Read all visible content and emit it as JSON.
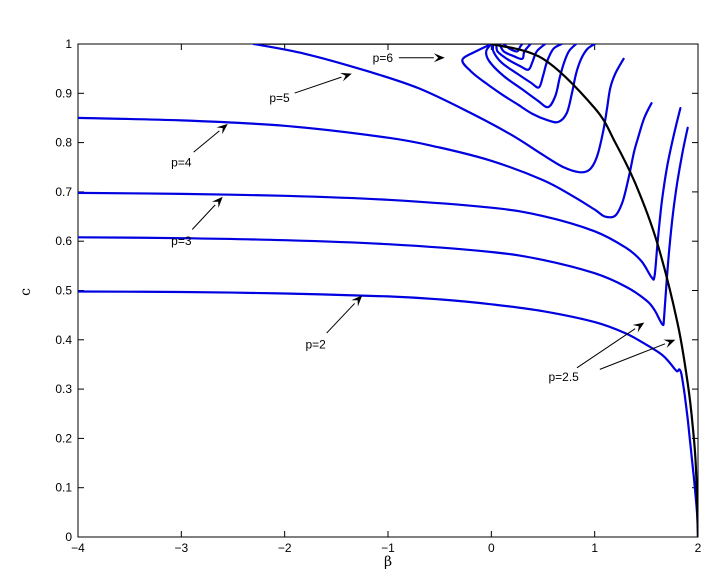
{
  "chart_data": {
    "type": "line",
    "xlabel": "β",
    "ylabel": "c",
    "xlim": [
      -4,
      2
    ],
    "ylim": [
      0,
      1
    ],
    "xticks": [
      -4,
      -3,
      -2,
      -1,
      0,
      1,
      2
    ],
    "yticks": [
      0,
      0.1,
      0.2,
      0.3,
      0.4,
      0.5,
      0.6,
      0.7,
      0.8,
      0.9,
      1
    ],
    "grid": false,
    "line_color": "#0000e0",
    "envelope_color": "#000000",
    "series": [
      {
        "name": "p=2",
        "points": [
          [
            -4,
            0.498
          ],
          [
            -3,
            0.497
          ],
          [
            -2,
            0.494
          ],
          [
            -1,
            0.488
          ],
          [
            -0.5,
            0.482
          ],
          [
            0,
            0.472
          ],
          [
            0.5,
            0.458
          ],
          [
            1,
            0.436
          ],
          [
            1.3,
            0.413
          ],
          [
            1.5,
            0.39
          ],
          [
            1.65,
            0.37
          ],
          [
            1.72,
            0.355
          ],
          [
            1.77,
            0.342
          ],
          [
            1.8,
            0.336
          ],
          [
            1.82,
            0.34
          ],
          [
            1.84,
            0.33
          ],
          [
            1.87,
            0.29
          ],
          [
            1.9,
            0.24
          ],
          [
            1.93,
            0.18
          ],
          [
            1.96,
            0.12
          ],
          [
            1.99,
            0.05
          ],
          [
            2.0,
            0.0
          ]
        ]
      },
      {
        "name": "",
        "points": [
          [
            -4,
            0.608
          ],
          [
            -3,
            0.606
          ],
          [
            -2,
            0.602
          ],
          [
            -1,
            0.594
          ],
          [
            0,
            0.578
          ],
          [
            0.5,
            0.562
          ],
          [
            1,
            0.535
          ],
          [
            1.3,
            0.508
          ],
          [
            1.5,
            0.48
          ],
          [
            1.58,
            0.46
          ],
          [
            1.63,
            0.44
          ],
          [
            1.66,
            0.43
          ],
          [
            1.67,
            0.44
          ],
          [
            1.69,
            0.5
          ],
          [
            1.72,
            0.58
          ],
          [
            1.76,
            0.66
          ],
          [
            1.8,
            0.72
          ],
          [
            1.85,
            0.78
          ],
          [
            1.9,
            0.83
          ]
        ]
      },
      {
        "name": "p=3",
        "points": [
          [
            -4,
            0.698
          ],
          [
            -3,
            0.696
          ],
          [
            -2,
            0.692
          ],
          [
            -1,
            0.684
          ],
          [
            0,
            0.668
          ],
          [
            0.5,
            0.651
          ],
          [
            1,
            0.62
          ],
          [
            1.3,
            0.587
          ],
          [
            1.45,
            0.56
          ],
          [
            1.55,
            0.527
          ],
          [
            1.58,
            0.53
          ],
          [
            1.61,
            0.6
          ],
          [
            1.65,
            0.68
          ],
          [
            1.7,
            0.75
          ],
          [
            1.76,
            0.81
          ],
          [
            1.83,
            0.87
          ]
        ]
      },
      {
        "name": "p=4",
        "points": [
          [
            -4,
            0.85
          ],
          [
            -3,
            0.845
          ],
          [
            -2,
            0.834
          ],
          [
            -1,
            0.81
          ],
          [
            -0.5,
            0.79
          ],
          [
            0,
            0.763
          ],
          [
            0.5,
            0.724
          ],
          [
            0.8,
            0.69
          ],
          [
            1,
            0.664
          ],
          [
            1.1,
            0.65
          ],
          [
            1.2,
            0.652
          ],
          [
            1.27,
            0.68
          ],
          [
            1.33,
            0.73
          ],
          [
            1.38,
            0.78
          ],
          [
            1.42,
            0.81
          ],
          [
            1.48,
            0.85
          ],
          [
            1.55,
            0.88
          ]
        ]
      },
      {
        "name": "p=5",
        "points": [
          [
            -2.3,
            1.0
          ],
          [
            -1.8,
            0.98
          ],
          [
            -1.2,
            0.945
          ],
          [
            -0.7,
            0.91
          ],
          [
            -0.2,
            0.86
          ],
          [
            0.2,
            0.815
          ],
          [
            0.5,
            0.775
          ],
          [
            0.7,
            0.75
          ],
          [
            0.85,
            0.74
          ],
          [
            0.95,
            0.745
          ],
          [
            1.02,
            0.77
          ],
          [
            1.08,
            0.82
          ],
          [
            1.12,
            0.87
          ],
          [
            1.15,
            0.91
          ],
          [
            1.2,
            0.94
          ],
          [
            1.28,
            0.97
          ]
        ]
      },
      {
        "name": "p=6",
        "points": [
          [
            0,
            1.0
          ],
          [
            -0.15,
            0.985
          ],
          [
            -0.28,
            0.968
          ],
          [
            -0.2,
            0.945
          ],
          [
            -0.05,
            0.92
          ],
          [
            0.1,
            0.898
          ],
          [
            0.25,
            0.878
          ],
          [
            0.4,
            0.858
          ],
          [
            0.55,
            0.845
          ],
          [
            0.65,
            0.842
          ],
          [
            0.73,
            0.86
          ],
          [
            0.78,
            0.9
          ],
          [
            0.82,
            0.94
          ],
          [
            0.87,
            0.97
          ],
          [
            0.93,
            0.99
          ],
          [
            1.0,
            1.0
          ]
        ]
      },
      {
        "name": "",
        "points": [
          [
            0,
            1.0
          ],
          [
            -0.05,
            0.985
          ],
          [
            -0.02,
            0.965
          ],
          [
            0.12,
            0.935
          ],
          [
            0.3,
            0.908
          ],
          [
            0.45,
            0.885
          ],
          [
            0.55,
            0.872
          ],
          [
            0.62,
            0.895
          ],
          [
            0.66,
            0.93
          ],
          [
            0.7,
            0.96
          ],
          [
            0.75,
            0.985
          ],
          [
            0.82,
            1.0
          ]
        ]
      },
      {
        "name": "",
        "points": [
          [
            0.02,
            1.0
          ],
          [
            0.02,
            0.985
          ],
          [
            0.1,
            0.962
          ],
          [
            0.25,
            0.94
          ],
          [
            0.38,
            0.922
          ],
          [
            0.46,
            0.912
          ],
          [
            0.5,
            0.935
          ],
          [
            0.54,
            0.965
          ],
          [
            0.6,
            0.99
          ],
          [
            0.68,
            1.0
          ]
        ]
      },
      {
        "name": "",
        "points": [
          [
            0.05,
            1.0
          ],
          [
            0.06,
            0.985
          ],
          [
            0.15,
            0.97
          ],
          [
            0.28,
            0.955
          ],
          [
            0.36,
            0.948
          ],
          [
            0.4,
            0.965
          ],
          [
            0.44,
            0.985
          ],
          [
            0.52,
            1.0
          ]
        ]
      },
      {
        "name": "",
        "points": [
          [
            0.08,
            1.0
          ],
          [
            0.12,
            0.985
          ],
          [
            0.22,
            0.975
          ],
          [
            0.3,
            0.97
          ],
          [
            0.32,
            0.985
          ],
          [
            0.38,
            1.0
          ]
        ]
      },
      {
        "name": "",
        "points": [
          [
            0.12,
            1.0
          ],
          [
            0.18,
            0.99
          ],
          [
            0.25,
            0.985
          ],
          [
            0.28,
            0.995
          ],
          [
            0.3,
            1.0
          ]
        ]
      }
    ],
    "envelope": [
      [
        0,
        1.0
      ],
      [
        0.5,
        0.97
      ],
      [
        1,
        0.87
      ],
      [
        1.2,
        0.8
      ],
      [
        1.4,
        0.714
      ],
      [
        1.6,
        0.6
      ],
      [
        1.8,
        0.436
      ],
      [
        1.9,
        0.312
      ],
      [
        1.95,
        0.223
      ],
      [
        1.98,
        0.141
      ],
      [
        2.0,
        0.0
      ]
    ],
    "annotations": [
      {
        "text": "p=6",
        "text_at": [
          -1.05,
          0.972
        ],
        "arrow_to": [
          -0.45,
          0.972
        ]
      },
      {
        "text": "p=5",
        "text_at": [
          -2.05,
          0.89
        ],
        "arrow_to": [
          -1.35,
          0.94
        ]
      },
      {
        "text": "p=4",
        "text_at": [
          -3.0,
          0.76
        ],
        "arrow_to": [
          -2.55,
          0.838
        ]
      },
      {
        "text": "p=3",
        "text_at": [
          -3.0,
          0.6
        ],
        "arrow_to": [
          -2.6,
          0.69
        ]
      },
      {
        "text": "p=2",
        "text_at": [
          -1.7,
          0.39
        ],
        "arrow_to": [
          -1.25,
          0.49
        ]
      },
      {
        "text": "p=2.5",
        "text_at": [
          0.7,
          0.325
        ],
        "arrow_to": [
          1.48,
          0.435
        ]
      },
      {
        "text": "",
        "text_at": [
          1.05,
          0.34
        ],
        "arrow_to": [
          1.78,
          0.4
        ]
      }
    ]
  }
}
